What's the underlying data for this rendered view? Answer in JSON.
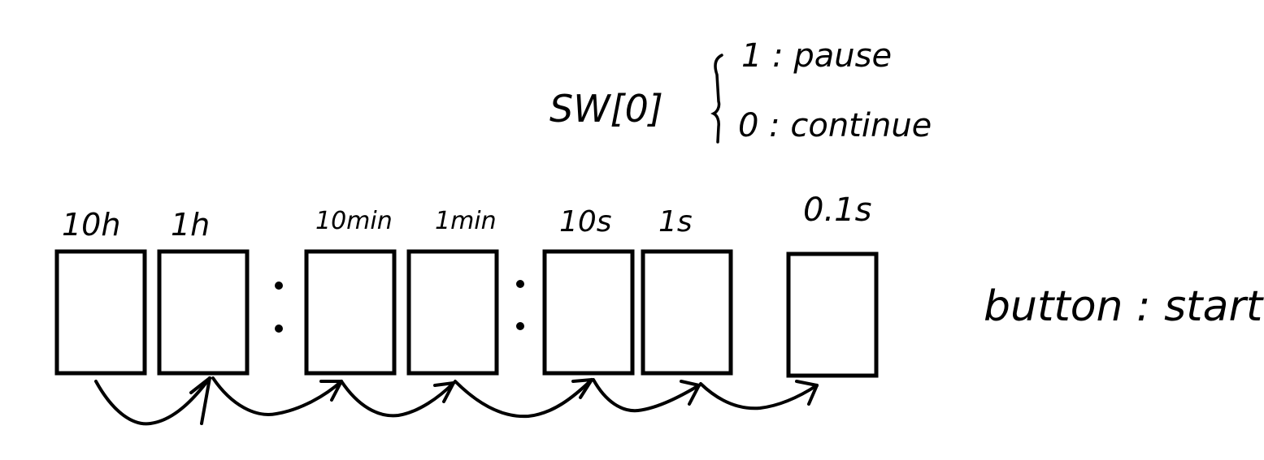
{
  "switch": {
    "name": "SW[0]",
    "option_1": "1 : pause",
    "option_0": "0 : continue"
  },
  "digits": [
    {
      "label": "10h"
    },
    {
      "label": "1h"
    },
    {
      "label": "10min"
    },
    {
      "label": "1min"
    },
    {
      "label": "10s"
    },
    {
      "label": "1s"
    },
    {
      "label": "0.1s"
    }
  ],
  "separators": [
    ":",
    ":"
  ],
  "button": {
    "label": "button : start"
  }
}
